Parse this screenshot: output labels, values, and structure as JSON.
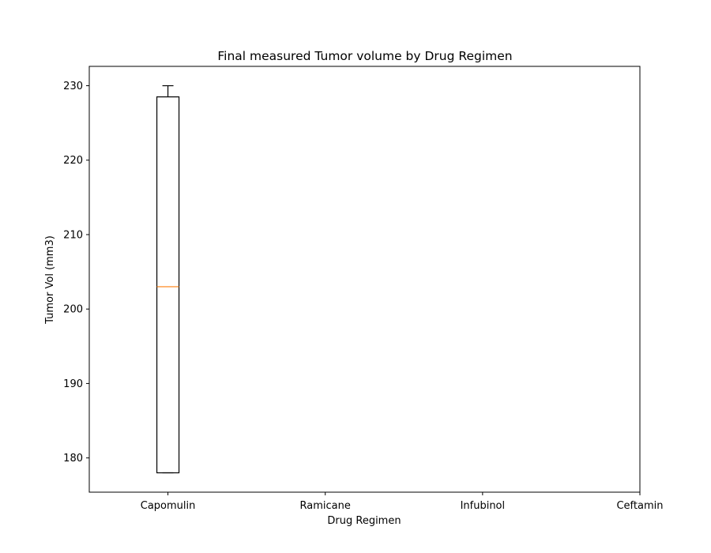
{
  "chart_data": {
    "type": "box",
    "title": "Final measured Tumor volume by Drug Regimen",
    "xlabel": "Drug Regimen",
    "ylabel": "Tumor Vol (mm3)",
    "categories": [
      "Capomulin",
      "Ramicane",
      "Infubinol",
      "Ceftamin"
    ],
    "ylim": [
      175.4,
      232.6
    ],
    "yticks": [
      180,
      190,
      200,
      210,
      220,
      230
    ],
    "grid": false,
    "boxes": [
      {
        "category": "Capomulin",
        "whisker_low": 178.0,
        "q1": 178.0,
        "median": 203.0,
        "q3": 228.5,
        "whisker_high": 230.0
      }
    ],
    "colors": {
      "box": "#000000",
      "median": "#ff7f0e"
    }
  }
}
